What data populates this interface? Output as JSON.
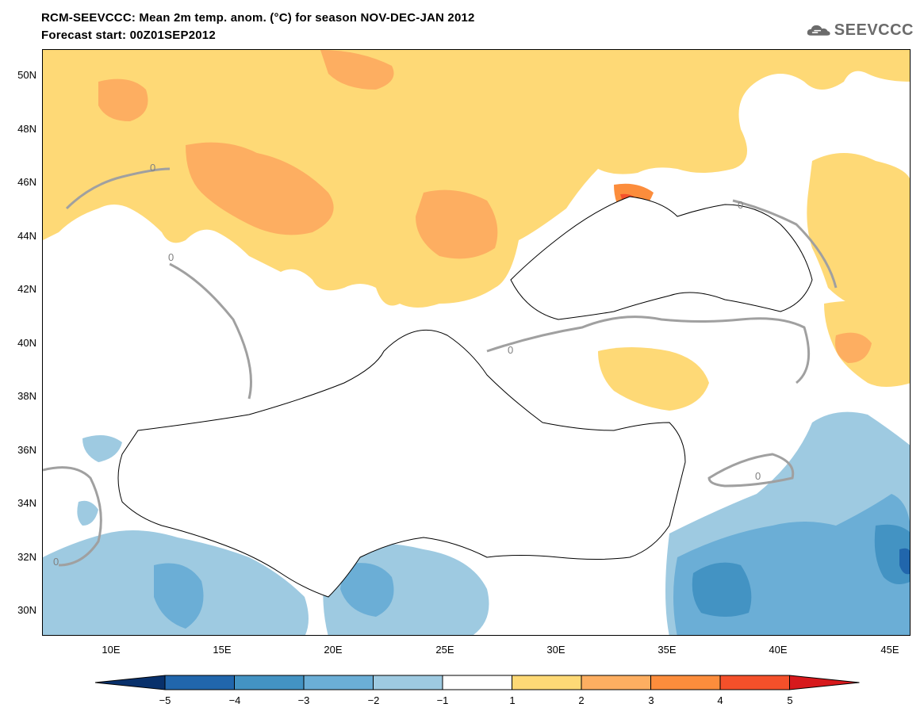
{
  "header": {
    "title_line1": "RCM-SEEVCCC: Mean 2m temp. anom. (°C) for season NOV-DEC-JAN 2012",
    "title_line2": "Forecast start: 00Z01SEP2012",
    "logo_text": "SEEVCCC"
  },
  "map": {
    "lon_range": [
      7,
      46
    ],
    "lat_range": [
      29,
      51
    ],
    "lat_labels": [
      "50N",
      "48N",
      "46N",
      "44N",
      "42N",
      "40N",
      "38N",
      "36N",
      "34N",
      "32N",
      "30N"
    ],
    "lon_labels": [
      "10E",
      "15E",
      "20E",
      "25E",
      "30E",
      "35E",
      "40E",
      "45E"
    ],
    "contour_label": "0"
  },
  "colorbar": {
    "labels": [
      "−5",
      "−4",
      "−3",
      "−2",
      "−1",
      "1",
      "2",
      "3",
      "4",
      "5"
    ],
    "colors": [
      "#08306b",
      "#2166ac",
      "#4393c3",
      "#6baed6",
      "#9ecae1",
      "#ffffff",
      "#fed976",
      "#fdae61",
      "#fc8d3c",
      "#f4502a",
      "#d7191c"
    ]
  }
}
